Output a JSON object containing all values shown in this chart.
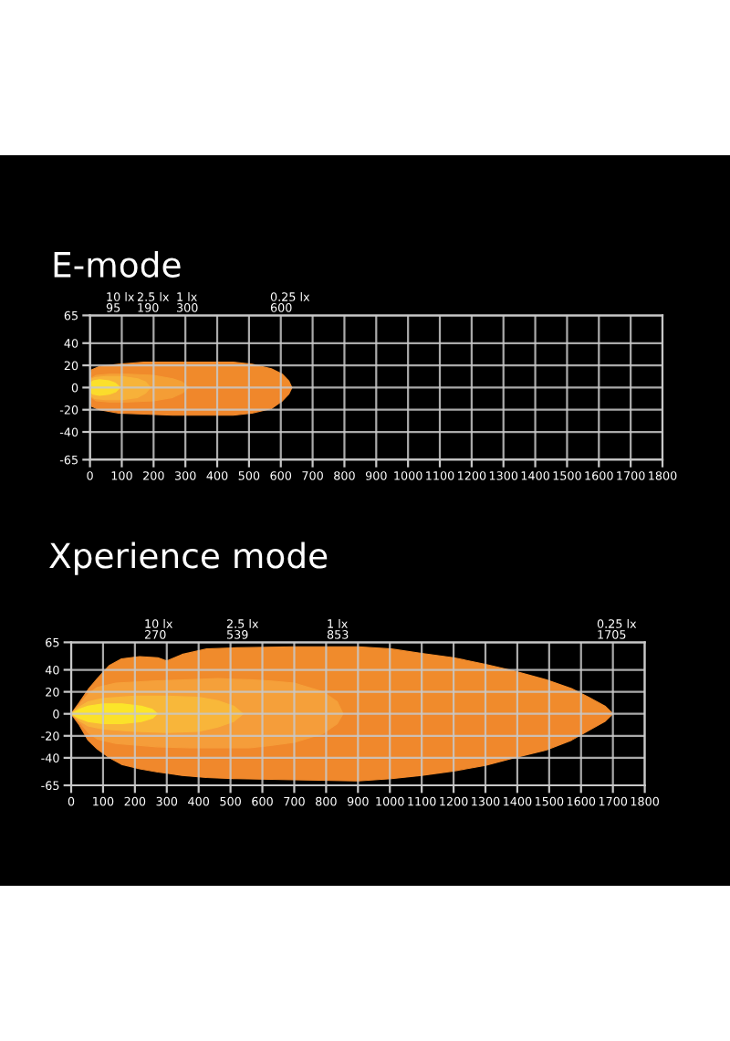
{
  "chart_data": [
    {
      "type": "area",
      "title": "E-mode",
      "xlim": [
        0,
        1800
      ],
      "xticks": [
        0,
        100,
        200,
        300,
        400,
        500,
        600,
        700,
        800,
        900,
        1000,
        1100,
        1200,
        1300,
        1400,
        1500,
        1600,
        1700,
        1800
      ],
      "ylim": [
        -65,
        65
      ],
      "yticks": [
        -65,
        -40,
        -20,
        0,
        20,
        40,
        65
      ],
      "grid": true,
      "series": [
        {
          "color": "#f08a2b",
          "x": [
            0,
            5,
            30,
            90,
            170,
            260,
            450,
            510,
            570,
            605,
            625,
            635
          ],
          "values": [
            8,
            16,
            19,
            21,
            23,
            23,
            23,
            21,
            17,
            12,
            6,
            0
          ]
        },
        {
          "color": "#f0872b",
          "x": [
            0,
            5,
            30,
            90,
            170,
            260,
            450,
            510,
            570,
            605,
            625,
            635
          ],
          "values": [
            -8,
            -17,
            -20,
            -23,
            -24,
            -25,
            -25,
            -23,
            -19,
            -12,
            -6,
            0
          ]
        },
        {
          "color": "#f4a035",
          "x": [
            0,
            20,
            60,
            120,
            200,
            260,
            290,
            310
          ],
          "values": [
            8,
            11,
            12,
            12,
            11,
            8,
            5,
            0
          ]
        },
        {
          "color": "#f49d35",
          "x": [
            0,
            20,
            60,
            120,
            200,
            260,
            290,
            310
          ],
          "values": [
            -8,
            -12,
            -13,
            -13,
            -12,
            -9,
            -5,
            0
          ]
        },
        {
          "color": "#f7b43a",
          "x": [
            0,
            15,
            50,
            100,
            150,
            175,
            190
          ],
          "values": [
            7,
            9,
            10,
            10,
            8,
            5,
            0
          ]
        },
        {
          "color": "#f7b13a",
          "x": [
            0,
            15,
            50,
            100,
            150,
            175,
            190
          ],
          "values": [
            -7,
            -10,
            -11,
            -11,
            -9,
            -5,
            0
          ]
        },
        {
          "color": "#fbe02c",
          "x": [
            0,
            10,
            30,
            60,
            80,
            95
          ],
          "values": [
            4,
            6,
            7,
            6,
            4,
            0
          ]
        },
        {
          "color": "#fbdc2c",
          "x": [
            0,
            10,
            30,
            60,
            80,
            95
          ],
          "values": [
            -4,
            -6,
            -7,
            -6,
            -4,
            0
          ]
        }
      ],
      "annotations": [
        "10 lx\n95",
        "2.5 lx\n190",
        "1 lx\n300",
        "0.25 lx\n600"
      ]
    },
    {
      "type": "area",
      "title": "Xperience mode",
      "xlim": [
        0,
        1800
      ],
      "xticks": [
        0,
        100,
        200,
        300,
        400,
        500,
        600,
        700,
        800,
        900,
        1000,
        1100,
        1200,
        1300,
        1400,
        1500,
        1600,
        1700,
        1800
      ],
      "ylim": [
        -65,
        65
      ],
      "yticks": [
        -65,
        -40,
        -20,
        0,
        20,
        40,
        65
      ],
      "grid": true,
      "series": [
        {
          "color": "#f08b2c",
          "x": [
            0,
            25,
            53,
            82,
            120,
            158,
            215,
            272,
            300,
            348,
            425,
            520,
            700,
            900,
            1005,
            1100,
            1200,
            1300,
            1390,
            1490,
            1570,
            1625,
            1675,
            1700
          ],
          "values": [
            0,
            10,
            22,
            32,
            44,
            50,
            52,
            51,
            48,
            54,
            59,
            60,
            61,
            61,
            59,
            55,
            51,
            45,
            39,
            31,
            23,
            15,
            7,
            0
          ]
        },
        {
          "color": "#f0882c",
          "x": [
            0,
            25,
            53,
            82,
            120,
            158,
            215,
            272,
            300,
            348,
            425,
            520,
            700,
            900,
            1005,
            1100,
            1200,
            1300,
            1390,
            1490,
            1570,
            1625,
            1675,
            1700
          ],
          "values": [
            0,
            -10,
            -24,
            -32,
            -40,
            -46,
            -50,
            -53,
            -54,
            -56,
            -58,
            -59,
            -60,
            -61,
            -59,
            -56,
            -52,
            -47,
            -40,
            -33,
            -24,
            -15,
            -7,
            0
          ]
        },
        {
          "color": "#f5a03a",
          "x": [
            0,
            25,
            53,
            82,
            140,
            270,
            370,
            460,
            560,
            620,
            700,
            790,
            835,
            853
          ],
          "values": [
            0,
            8,
            18,
            24,
            28,
            30,
            31,
            32,
            31,
            30,
            28,
            20,
            11,
            0
          ]
        },
        {
          "color": "#f59d3a",
          "x": [
            0,
            25,
            53,
            82,
            140,
            270,
            370,
            460,
            560,
            620,
            700,
            790,
            835,
            853
          ],
          "values": [
            0,
            -7,
            -17,
            -23,
            -27,
            -30,
            -31,
            -31,
            -31,
            -29,
            -26,
            -18,
            -9,
            0
          ]
        },
        {
          "color": "#f8b83a",
          "x": [
            0,
            25,
            53,
            100,
            200,
            300,
            400,
            460,
            510,
            539
          ],
          "values": [
            0,
            6,
            11,
            14,
            16,
            16,
            15,
            12,
            7,
            0
          ]
        },
        {
          "color": "#f8b53a",
          "x": [
            0,
            25,
            53,
            100,
            200,
            300,
            400,
            460,
            510,
            539
          ],
          "values": [
            0,
            -6,
            -11,
            -14,
            -16,
            -17,
            -16,
            -12,
            -7,
            0
          ]
        },
        {
          "color": "#fbe52a",
          "x": [
            0,
            25,
            53,
            100,
            160,
            220,
            255,
            270
          ],
          "values": [
            0,
            4,
            7,
            9,
            9,
            7,
            4,
            0
          ]
        },
        {
          "color": "#fbe12a",
          "x": [
            0,
            25,
            53,
            100,
            160,
            220,
            255,
            270
          ],
          "values": [
            0,
            -4,
            -7,
            -9,
            -9,
            -7,
            -4,
            0
          ]
        }
      ],
      "annotations": [
        "10 lx\n270",
        "2.5 lx\n539",
        "1 lx\n853",
        "0.25 lx\n1705"
      ]
    }
  ]
}
